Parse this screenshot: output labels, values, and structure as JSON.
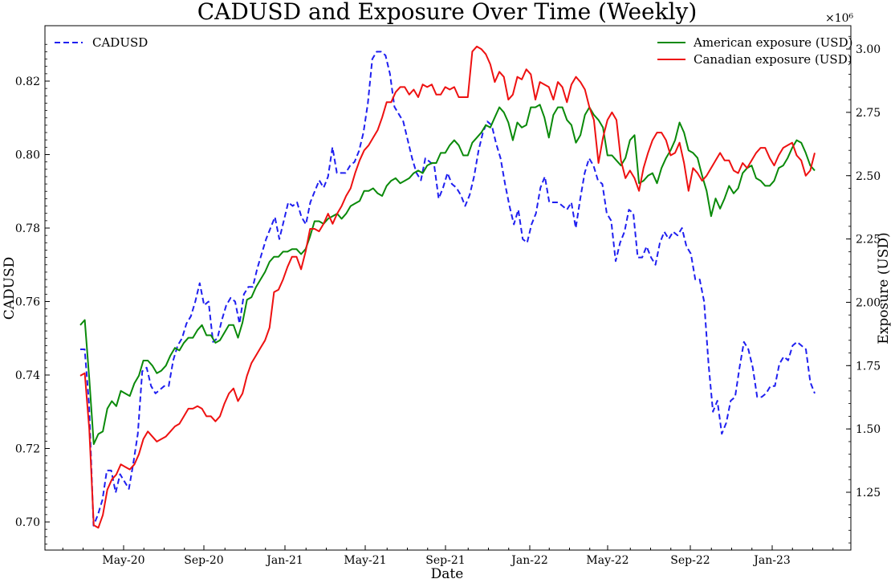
{
  "chart_data": {
    "type": "line",
    "title": "CADUSD and Exposure Over Time (Weekly)",
    "xlabel": "Date",
    "ylabel_left": "CADUSD",
    "ylabel_right": "Exposure (USD)",
    "right_axis_multiplier": "×10⁶",
    "x_tick_labels": [
      "May-20",
      "Sep-20",
      "Jan-21",
      "May-21",
      "Sep-21",
      "Jan-22",
      "May-22",
      "Sep-22",
      "Jan-23"
    ],
    "y_left_ticks": [
      "0.70",
      "0.72",
      "0.74",
      "0.76",
      "0.78",
      "0.80",
      "0.82"
    ],
    "y_right_ticks": [
      "1.25",
      "1.50",
      "1.75",
      "2.00",
      "2.25",
      "2.50",
      "2.75",
      "3.00"
    ],
    "ylim_left": [
      0.692,
      0.833
    ],
    "ylim_right": [
      1.03,
      3.08
    ],
    "x_start": "2020-03-01",
    "x_end": "2023-04-30",
    "grid": false,
    "legend_left": {
      "placement": "top-left",
      "entries": [
        "CADUSD"
      ]
    },
    "legend_right": {
      "placement": "top-right",
      "entries": [
        "American exposure (USD)",
        "Canadian exposure (USD)"
      ]
    },
    "colors": {
      "cadusd": "#1f1ff0",
      "american": "#0a8a0a",
      "canadian": "#ee1111"
    },
    "series": [
      {
        "name": "CADUSD",
        "axis": "left",
        "style": "dashed",
        "values": [
          0.747,
          0.747,
          0.732,
          0.699,
          0.702,
          0.706,
          0.714,
          0.714,
          0.708,
          0.713,
          0.711,
          0.709,
          0.716,
          0.724,
          0.741,
          0.742,
          0.737,
          0.735,
          0.736,
          0.737,
          0.737,
          0.744,
          0.748,
          0.75,
          0.754,
          0.756,
          0.76,
          0.765,
          0.759,
          0.76,
          0.749,
          0.75,
          0.755,
          0.759,
          0.761,
          0.76,
          0.754,
          0.762,
          0.764,
          0.764,
          0.769,
          0.773,
          0.777,
          0.78,
          0.783,
          0.777,
          0.782,
          0.787,
          0.786,
          0.787,
          0.783,
          0.781,
          0.787,
          0.79,
          0.793,
          0.791,
          0.794,
          0.802,
          0.795,
          0.795,
          0.795,
          0.797,
          0.798,
          0.801,
          0.806,
          0.814,
          0.826,
          0.828,
          0.828,
          0.827,
          0.822,
          0.813,
          0.811,
          0.809,
          0.804,
          0.799,
          0.795,
          0.793,
          0.799,
          0.798,
          0.797,
          0.788,
          0.791,
          0.795,
          0.792,
          0.791,
          0.789,
          0.786,
          0.789,
          0.794,
          0.801,
          0.806,
          0.809,
          0.808,
          0.803,
          0.799,
          0.792,
          0.786,
          0.781,
          0.785,
          0.777,
          0.776,
          0.781,
          0.784,
          0.791,
          0.794,
          0.787,
          0.787,
          0.787,
          0.786,
          0.785,
          0.787,
          0.78,
          0.788,
          0.795,
          0.799,
          0.797,
          0.793,
          0.792,
          0.784,
          0.782,
          0.771,
          0.776,
          0.779,
          0.785,
          0.784,
          0.772,
          0.772,
          0.775,
          0.772,
          0.77,
          0.776,
          0.779,
          0.777,
          0.779,
          0.778,
          0.78,
          0.775,
          0.773,
          0.766,
          0.766,
          0.76,
          0.743,
          0.73,
          0.733,
          0.724,
          0.727,
          0.733,
          0.734,
          0.742,
          0.749,
          0.747,
          0.742,
          0.734,
          0.734,
          0.735,
          0.737,
          0.737,
          0.743,
          0.745,
          0.744,
          0.748,
          0.749,
          0.748,
          0.747,
          0.738,
          0.735
        ]
      },
      {
        "name": "American exposure (USD)",
        "axis": "right",
        "style": "solid",
        "values": [
          1.91,
          1.93,
          1.7,
          1.44,
          1.48,
          1.49,
          1.58,
          1.61,
          1.59,
          1.65,
          1.64,
          1.63,
          1.68,
          1.71,
          1.77,
          1.77,
          1.75,
          1.72,
          1.73,
          1.75,
          1.79,
          1.82,
          1.81,
          1.84,
          1.86,
          1.86,
          1.89,
          1.91,
          1.87,
          1.87,
          1.84,
          1.85,
          1.88,
          1.91,
          1.91,
          1.86,
          1.92,
          2.01,
          2.02,
          2.06,
          2.09,
          2.12,
          2.16,
          2.18,
          2.18,
          2.2,
          2.2,
          2.21,
          2.21,
          2.19,
          2.21,
          2.26,
          2.32,
          2.32,
          2.31,
          2.33,
          2.34,
          2.35,
          2.33,
          2.35,
          2.38,
          2.39,
          2.4,
          2.44,
          2.44,
          2.45,
          2.43,
          2.42,
          2.46,
          2.48,
          2.49,
          2.47,
          2.48,
          2.49,
          2.51,
          2.52,
          2.51,
          2.54,
          2.55,
          2.55,
          2.59,
          2.59,
          2.62,
          2.64,
          2.62,
          2.58,
          2.58,
          2.63,
          2.65,
          2.67,
          2.7,
          2.69,
          2.73,
          2.77,
          2.75,
          2.71,
          2.64,
          2.71,
          2.69,
          2.7,
          2.77,
          2.77,
          2.78,
          2.73,
          2.65,
          2.74,
          2.77,
          2.77,
          2.72,
          2.7,
          2.63,
          2.66,
          2.74,
          2.77,
          2.74,
          2.72,
          2.69,
          2.58,
          2.58,
          2.56,
          2.54,
          2.57,
          2.64,
          2.66,
          2.47,
          2.48,
          2.5,
          2.51,
          2.47,
          2.53,
          2.57,
          2.6,
          2.64,
          2.71,
          2.67,
          2.6,
          2.59,
          2.57,
          2.5,
          2.44,
          2.34,
          2.41,
          2.37,
          2.41,
          2.46,
          2.43,
          2.45,
          2.51,
          2.53,
          2.54,
          2.49,
          2.48,
          2.46,
          2.46,
          2.48,
          2.53,
          2.54,
          2.57,
          2.61,
          2.64,
          2.63,
          2.59,
          2.54,
          2.52
        ]
      },
      {
        "name": "Canadian exposure (USD)",
        "axis": "right",
        "style": "solid",
        "values": [
          1.71,
          1.72,
          1.5,
          1.12,
          1.11,
          1.16,
          1.26,
          1.3,
          1.32,
          1.36,
          1.35,
          1.34,
          1.36,
          1.4,
          1.46,
          1.49,
          1.47,
          1.45,
          1.46,
          1.47,
          1.49,
          1.51,
          1.52,
          1.55,
          1.58,
          1.58,
          1.59,
          1.58,
          1.55,
          1.55,
          1.53,
          1.55,
          1.6,
          1.64,
          1.66,
          1.61,
          1.64,
          1.71,
          1.76,
          1.79,
          1.82,
          1.85,
          1.9,
          2.04,
          2.05,
          2.09,
          2.14,
          2.18,
          2.18,
          2.13,
          2.2,
          2.29,
          2.29,
          2.28,
          2.31,
          2.35,
          2.31,
          2.35,
          2.38,
          2.42,
          2.45,
          2.51,
          2.56,
          2.6,
          2.62,
          2.65,
          2.68,
          2.73,
          2.79,
          2.79,
          2.83,
          2.85,
          2.85,
          2.82,
          2.84,
          2.81,
          2.86,
          2.85,
          2.86,
          2.82,
          2.82,
          2.85,
          2.84,
          2.85,
          2.81,
          2.81,
          2.81,
          2.99,
          3.01,
          3.0,
          2.98,
          2.94,
          2.87,
          2.91,
          2.89,
          2.8,
          2.82,
          2.89,
          2.88,
          2.92,
          2.9,
          2.8,
          2.87,
          2.86,
          2.85,
          2.8,
          2.87,
          2.85,
          2.79,
          2.86,
          2.89,
          2.87,
          2.84,
          2.77,
          2.72,
          2.55,
          2.65,
          2.72,
          2.75,
          2.72,
          2.56,
          2.49,
          2.52,
          2.49,
          2.44,
          2.53,
          2.59,
          2.64,
          2.67,
          2.67,
          2.64,
          2.58,
          2.59,
          2.63,
          2.55,
          2.44,
          2.53,
          2.51,
          2.48,
          2.5,
          2.53,
          2.56,
          2.59,
          2.56,
          2.56,
          2.52,
          2.51,
          2.55,
          2.53,
          2.56,
          2.59,
          2.61,
          2.61,
          2.57,
          2.54,
          2.58,
          2.61,
          2.62,
          2.63,
          2.58,
          2.56,
          2.5,
          2.52,
          2.59
        ]
      }
    ]
  }
}
